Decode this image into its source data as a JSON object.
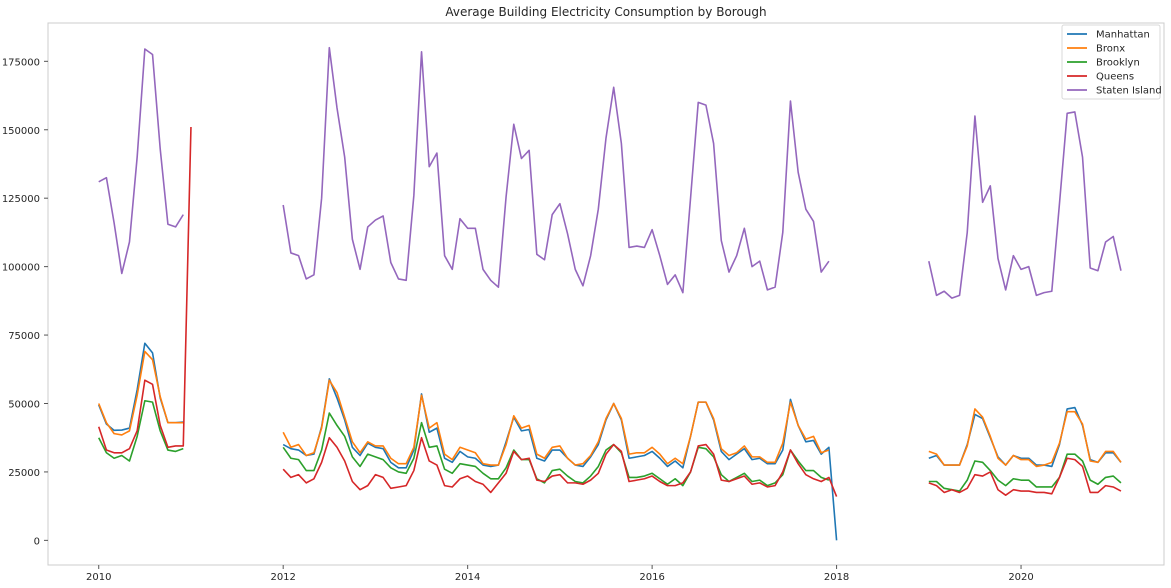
{
  "chart_data": {
    "type": "line",
    "title": "Average Building Electricity Consumption by Borough",
    "xlabel": "",
    "ylabel": "",
    "xlim": [
      2009.45,
      2021.55
    ],
    "ylim": [
      -9000,
      189000
    ],
    "grid": false,
    "legend_position": "top-right",
    "x_ticks": [
      2010,
      2012,
      2014,
      2016,
      2018,
      2020
    ],
    "x_tick_labels": [
      "2010",
      "2012",
      "2014",
      "2016",
      "2018",
      "2020"
    ],
    "y_ticks": [
      0,
      25000,
      50000,
      75000,
      100000,
      125000,
      150000,
      175000
    ],
    "y_tick_labels": [
      "0",
      "25000",
      "50000",
      "75000",
      "100000",
      "125000",
      "150000",
      "175000"
    ],
    "segments": [
      {
        "start": "2010-01",
        "months": 13
      },
      {
        "start": "2012-01",
        "months": 72
      },
      {
        "start": "2019-01",
        "months": 25
      }
    ],
    "series": [
      {
        "name": "Manhattan",
        "color": "#1f77b4",
        "segments": [
          [
            49500,
            42500,
            40200,
            40300,
            41000,
            55000,
            72000,
            68500,
            52000,
            43000,
            43000,
            43200,
            null
          ],
          [
            35000,
            33500,
            33000,
            31000,
            31500,
            41500,
            59000,
            52000,
            44000,
            34000,
            31000,
            35500,
            34000,
            33500,
            28500,
            26500,
            26500,
            33000,
            53500,
            39500,
            41000,
            30000,
            28500,
            32500,
            30500,
            30000,
            27500,
            27000,
            27500,
            36000,
            45000,
            40000,
            40500,
            30000,
            29000,
            33000,
            33000,
            30000,
            27500,
            27000,
            30500,
            35000,
            44000,
            50000,
            44000,
            30000,
            30500,
            31000,
            32500,
            30000,
            27000,
            29000,
            26500,
            38000,
            50500,
            50500,
            44000,
            32500,
            29500,
            31500,
            33500,
            29500,
            30000,
            28000,
            28000,
            33000,
            51500,
            42000,
            36000,
            36500,
            31500,
            34000,
            0
          ],
          [
            30000,
            31000,
            27500,
            27500,
            27500,
            35000,
            46000,
            44500,
            37500,
            30500,
            27500,
            31000,
            30000,
            30000,
            27500,
            27500,
            27000,
            35000,
            48000,
            48500,
            42000,
            29500,
            28500,
            32000,
            32000,
            28500
          ]
        ]
      },
      {
        "name": "Bronx",
        "color": "#ff7f0e",
        "segments": [
          [
            50000,
            43000,
            39000,
            38500,
            40000,
            53000,
            69000,
            66000,
            52500,
            43000,
            43000,
            43000,
            null
          ],
          [
            39500,
            34000,
            35000,
            31000,
            32000,
            41000,
            58500,
            54000,
            45000,
            36000,
            32000,
            36000,
            34500,
            34500,
            30000,
            28000,
            28000,
            34000,
            53000,
            41000,
            43000,
            31500,
            29500,
            34000,
            33000,
            32000,
            28000,
            27500,
            27500,
            35000,
            45500,
            41000,
            42000,
            31500,
            30000,
            34000,
            34500,
            30000,
            27500,
            28000,
            31000,
            36000,
            44500,
            50000,
            44500,
            31500,
            32000,
            32000,
            34000,
            31500,
            28000,
            30000,
            28000,
            38000,
            50500,
            50500,
            44500,
            33500,
            31000,
            32000,
            34500,
            30500,
            30500,
            28500,
            28500,
            35500,
            50500,
            42000,
            37000,
            38000,
            32000,
            33000,
            null
          ],
          [
            32500,
            31500,
            27500,
            27500,
            27500,
            34500,
            48000,
            45000,
            38000,
            30000,
            27500,
            31000,
            29500,
            29500,
            27000,
            27500,
            28500,
            35500,
            47000,
            47000,
            42500,
            29000,
            28500,
            32500,
            32500,
            28500
          ]
        ]
      },
      {
        "name": "Brooklyn",
        "color": "#2ca02c",
        "segments": [
          [
            37500,
            32000,
            30000,
            31000,
            29000,
            38000,
            51000,
            50500,
            40000,
            33000,
            32500,
            33500,
            null
          ],
          [
            34000,
            30000,
            29500,
            25500,
            25500,
            33000,
            46500,
            42000,
            38000,
            30500,
            27000,
            31500,
            30500,
            29500,
            26500,
            25000,
            24500,
            30000,
            43000,
            34000,
            34500,
            26000,
            24500,
            28000,
            27500,
            27000,
            24500,
            22500,
            22500,
            26500,
            33000,
            29500,
            29500,
            22500,
            21000,
            25500,
            26000,
            23500,
            21500,
            21000,
            23500,
            27000,
            33000,
            35000,
            32000,
            23000,
            23000,
            23500,
            24500,
            22500,
            20500,
            22500,
            20000,
            25000,
            34000,
            33500,
            30500,
            24000,
            21500,
            23000,
            24500,
            21500,
            22000,
            20000,
            21000,
            24000,
            33000,
            29000,
            25500,
            25500,
            23000,
            22000,
            null
          ],
          [
            21500,
            21500,
            19000,
            18500,
            18000,
            22000,
            29000,
            28500,
            25500,
            22000,
            20000,
            22500,
            22000,
            22000,
            19500,
            19500,
            19500,
            23000,
            31500,
            31500,
            29000,
            22000,
            20500,
            23000,
            23500,
            21000
          ]
        ]
      },
      {
        "name": "Queens",
        "color": "#d62728",
        "segments": [
          [
            41500,
            33000,
            32000,
            32000,
            33500,
            40000,
            58500,
            57000,
            42000,
            34000,
            34500,
            34500,
            151000
          ],
          [
            26000,
            23000,
            24000,
            21000,
            22500,
            28500,
            37500,
            34000,
            29000,
            21500,
            18500,
            20000,
            24000,
            23000,
            19000,
            19500,
            20000,
            25500,
            37500,
            29000,
            27500,
            20000,
            19500,
            22500,
            23500,
            21500,
            20500,
            17500,
            21000,
            24500,
            32500,
            29500,
            30000,
            22000,
            21500,
            23500,
            24000,
            21000,
            21000,
            20500,
            22000,
            24500,
            31500,
            35000,
            32500,
            21500,
            22000,
            22500,
            23500,
            21500,
            20000,
            20000,
            21000,
            25000,
            34500,
            35000,
            31500,
            22000,
            21500,
            22500,
            23500,
            20500,
            21000,
            19500,
            20000,
            25000,
            33000,
            28000,
            24000,
            22500,
            21500,
            23000,
            16000
          ],
          [
            21000,
            20000,
            17500,
            18500,
            17500,
            19000,
            24000,
            23500,
            25000,
            18500,
            16500,
            18500,
            18000,
            18000,
            17500,
            17500,
            17000,
            23000,
            30000,
            29500,
            27000,
            17500,
            17500,
            20000,
            19500,
            18000
          ]
        ]
      },
      {
        "name": "Staten Island",
        "color": "#9467bd",
        "segments": [
          [
            131000,
            132500,
            116000,
            97500,
            109000,
            140000,
            179500,
            177500,
            143000,
            115500,
            114500,
            119000,
            null
          ],
          [
            122500,
            105000,
            104000,
            95500,
            97000,
            125000,
            180000,
            158000,
            140000,
            110000,
            99000,
            114500,
            117000,
            118500,
            101500,
            95500,
            95000,
            126000,
            178500,
            136500,
            141500,
            104000,
            99000,
            117500,
            114000,
            114000,
            99000,
            95000,
            92500,
            125500,
            152000,
            139500,
            142500,
            104500,
            102500,
            119000,
            123000,
            112000,
            99000,
            93000,
            104000,
            121000,
            147000,
            165500,
            145000,
            107000,
            107500,
            107000,
            113500,
            104000,
            93500,
            97000,
            90500,
            125000,
            160000,
            159000,
            145000,
            109500,
            98000,
            104000,
            114000,
            100000,
            102000,
            91500,
            92500,
            112500,
            160500,
            134500,
            121000,
            116500,
            98000,
            102000,
            null
          ],
          [
            102000,
            89500,
            91000,
            88500,
            89500,
            112500,
            155000,
            123500,
            129500,
            103000,
            91500,
            104000,
            99000,
            100000,
            89500,
            90500,
            91000,
            123000,
            156000,
            156500,
            140000,
            99500,
            98500,
            109000,
            111000,
            98500
          ]
        ]
      }
    ]
  }
}
